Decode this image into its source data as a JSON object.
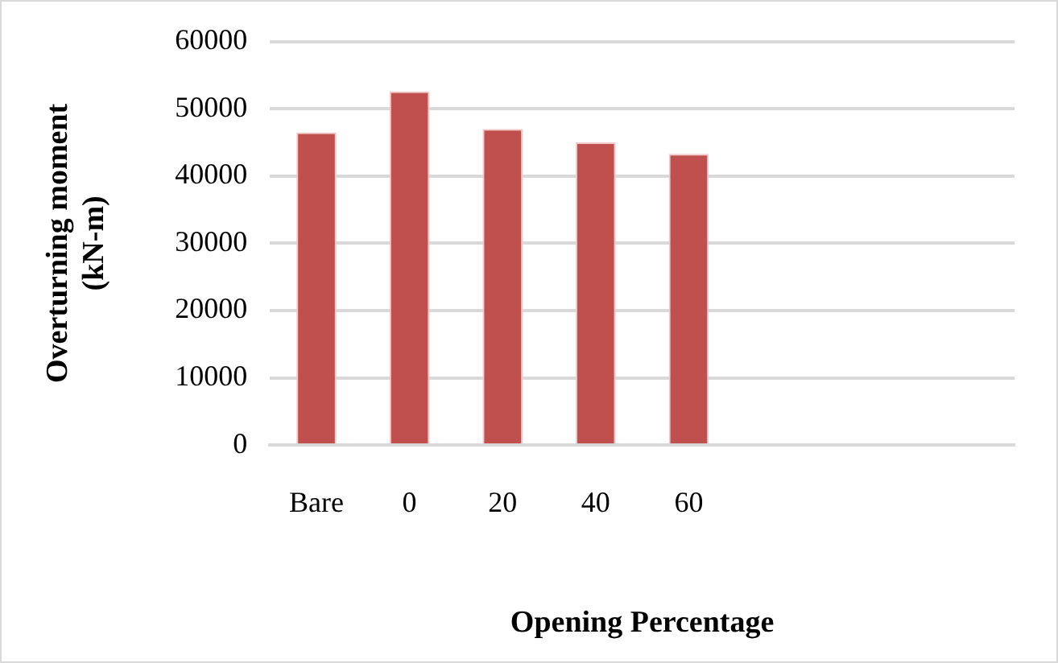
{
  "chart_data": {
    "type": "bar",
    "xlabel": "Opening Percentage",
    "ylabel": "Overturning moment\n(kN-m)",
    "categories": [
      "Bare",
      "0",
      "20",
      "40",
      "60",
      null,
      null,
      null
    ],
    "values": [
      46500,
      52600,
      47000,
      45000,
      43300,
      null,
      null,
      null
    ],
    "color": "#c0504d",
    "ylim": [
      0,
      60000
    ],
    "yticks": [
      0,
      10000,
      20000,
      30000,
      40000,
      50000,
      60000
    ],
    "grid": "y"
  }
}
